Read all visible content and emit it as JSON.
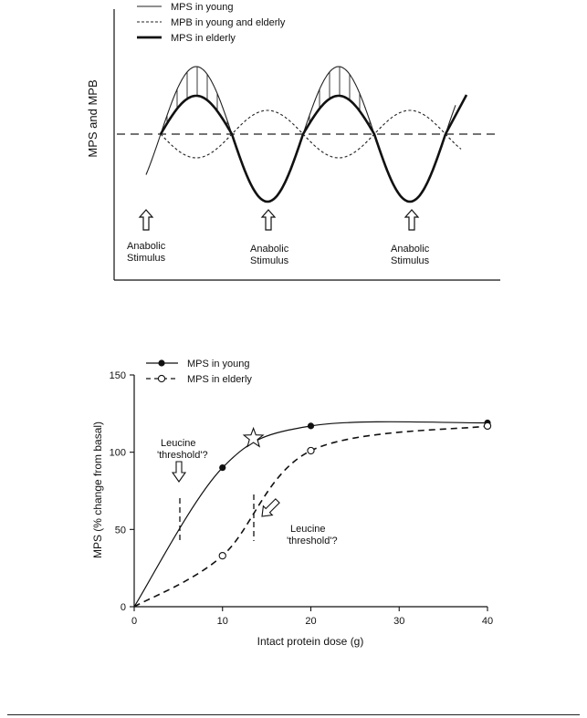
{
  "chart_data": [
    {
      "type": "line",
      "ylabel": "MPS and MPB",
      "legend": {
        "placement": "top-left",
        "entries": [
          {
            "label": "MPS in young",
            "style": "solid"
          },
          {
            "label": "MPB in young and elderly",
            "style": "dotted"
          },
          {
            "label": "MPS in elderly",
            "style": "thick"
          }
        ]
      },
      "annotations": [
        {
          "line1": "Anabolic",
          "line2": "Stimulus"
        },
        {
          "line1": "Anabolic",
          "line2": "Stimulus"
        },
        {
          "line1": "Anabolic",
          "line2": "Stimulus"
        }
      ],
      "baseline": "dashed",
      "hatched_difference": true
    },
    {
      "type": "line",
      "xlabel": "Intact protein dose (g)",
      "ylabel": "MPS (% change from basal)",
      "xlim": [
        0,
        40
      ],
      "ylim": [
        0,
        150
      ],
      "x_ticks": [
        "0",
        "10",
        "20",
        "30",
        "40"
      ],
      "y_ticks": [
        "0",
        "50",
        "100",
        "150"
      ],
      "legend": {
        "placement": "top-left"
      },
      "series": [
        {
          "name": "MPS in young",
          "marker": "filled-circle",
          "line": "solid",
          "x": [
            0,
            10,
            20,
            40
          ],
          "y": [
            0,
            90,
            117,
            119
          ]
        },
        {
          "name": "MPS in elderly",
          "marker": "open-circle",
          "line": "dashed",
          "x": [
            0,
            10,
            20,
            40
          ],
          "y": [
            0,
            33,
            101,
            117
          ]
        }
      ],
      "annotations": [
        {
          "line1": "Leucine",
          "line2": "'threshold'?",
          "x": 5
        },
        {
          "line1": "Leucine",
          "line2": "'threshold'?",
          "x": 13.5
        }
      ],
      "star": {
        "x": 13.5,
        "y": 109
      }
    }
  ]
}
